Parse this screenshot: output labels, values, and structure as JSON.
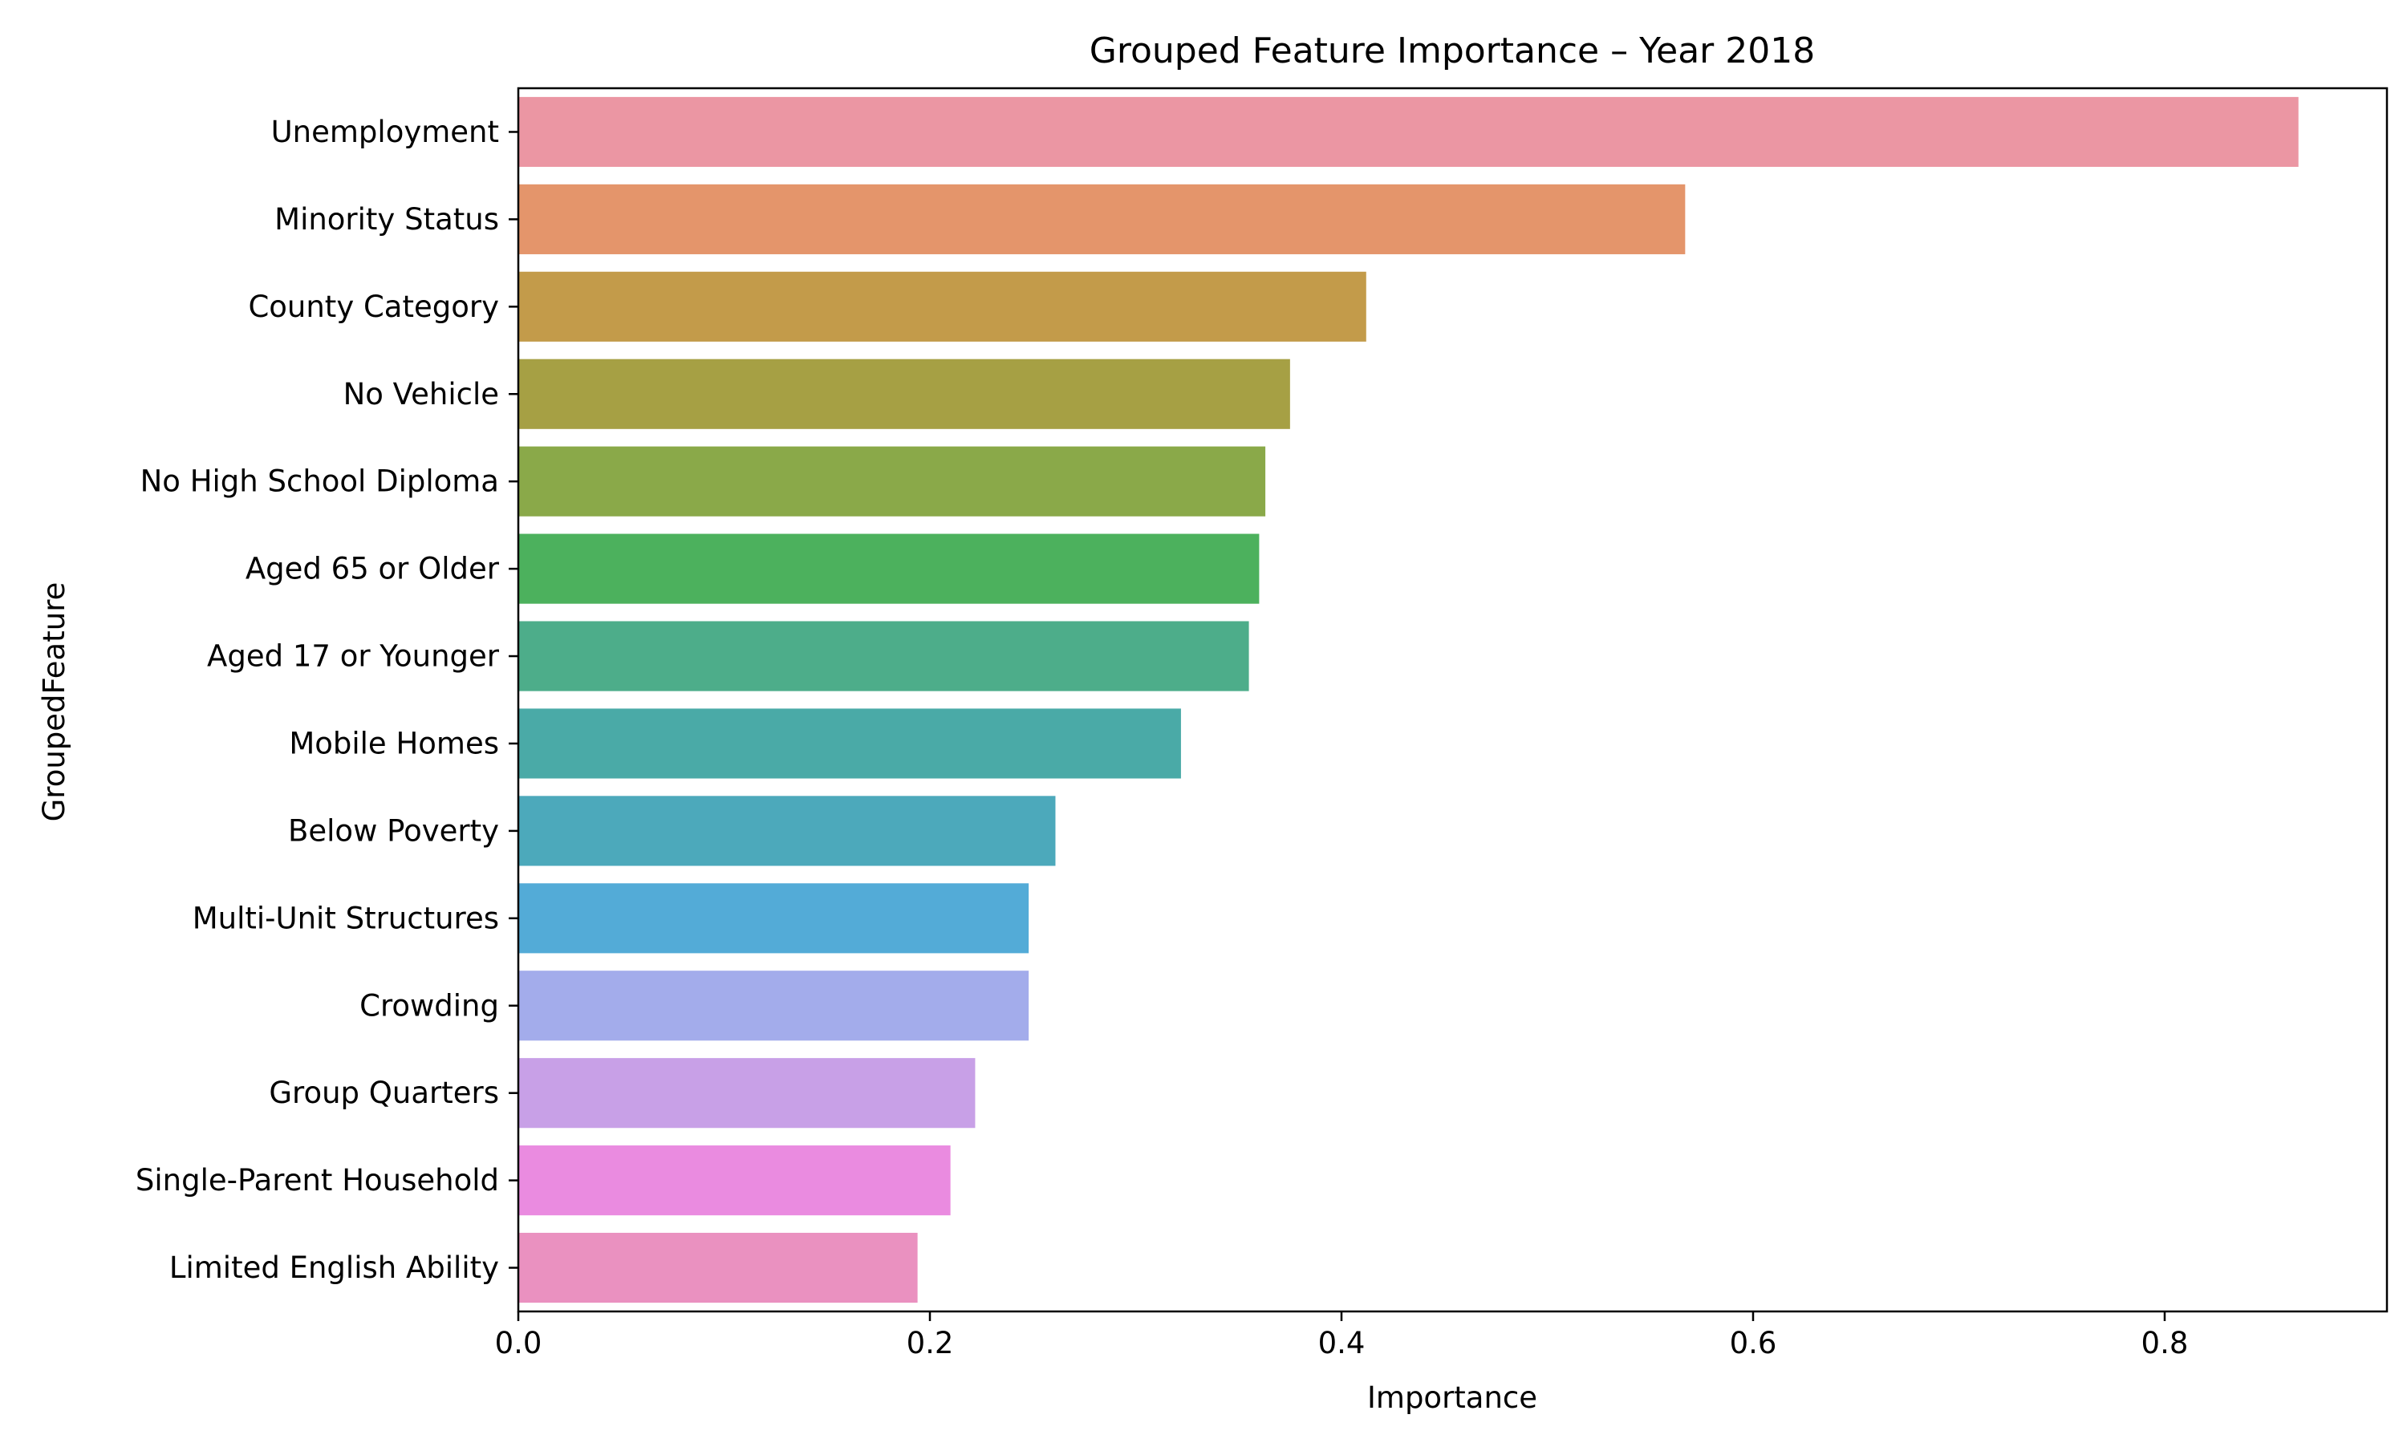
{
  "chart_data": {
    "type": "bar",
    "orientation": "horizontal",
    "title": "Grouped Feature Importance – Year 2018",
    "xlabel": "Importance",
    "ylabel": "GroupedFeature",
    "xlim": [
      0,
      0.908
    ],
    "xticks": [
      0.0,
      0.2,
      0.4,
      0.6,
      0.8
    ],
    "xtick_labels": [
      "0.0",
      "0.2",
      "0.4",
      "0.6",
      "0.8"
    ],
    "grid": false,
    "legend": "none",
    "categories": [
      "Unemployment",
      "Minority Status",
      "County Category",
      "No Vehicle",
      "No High School Diploma",
      "Aged 65 or Older",
      "Aged 17 or Younger",
      "Mobile Homes",
      "Below Poverty",
      "Multi-Unit Structures",
      "Crowding",
      "Group Quarters",
      "Single-Parent Household",
      "Limited English Ability"
    ],
    "values": [
      0.865,
      0.567,
      0.412,
      0.375,
      0.363,
      0.36,
      0.355,
      0.322,
      0.261,
      0.248,
      0.248,
      0.222,
      0.21,
      0.194
    ],
    "colors": [
      "#eb96a3",
      "#e4956b",
      "#c39b4a",
      "#a6a044",
      "#8aa949",
      "#4cb15d",
      "#4dad8a",
      "#4aaaa7",
      "#4ca9bb",
      "#53abd7",
      "#a3aceb",
      "#c8a0e7",
      "#ea8be0",
      "#ea91c0"
    ]
  }
}
